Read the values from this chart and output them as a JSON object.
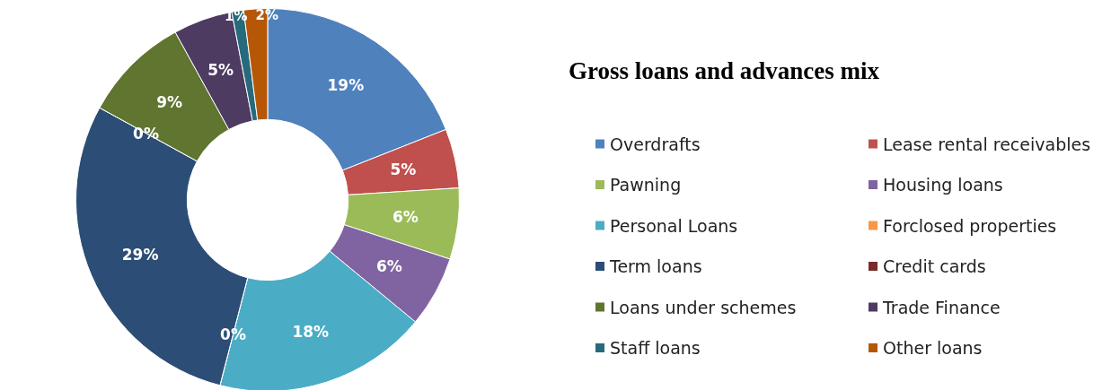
{
  "chart_data": {
    "type": "donut",
    "title": "Gross loans and advances mix",
    "categories": [
      "Overdrafts",
      "Lease rental receivables",
      "Pawning",
      "Housing loans",
      "Personal Loans",
      "Forclosed properties",
      "Term loans",
      "Credit cards",
      "Loans under schemes",
      "Trade Finance",
      "Staff loans",
      "Other loans"
    ],
    "values": [
      19,
      5,
      6,
      6,
      18,
      0,
      29,
      0,
      9,
      5,
      1,
      2
    ],
    "colors": [
      "#4f81bd",
      "#c0504d",
      "#9bbb59",
      "#8064a2",
      "#4bacc6",
      "#f79646",
      "#2c4d75",
      "#772c2a",
      "#5f7530",
      "#4d3b62",
      "#276a7c",
      "#b65708"
    ],
    "value_labels": [
      "19%",
      "5%",
      "6%",
      "6%",
      "18%",
      "0%",
      "29%",
      "0%",
      "9%",
      "5%",
      "1%",
      "2%"
    ],
    "legend": "right"
  }
}
